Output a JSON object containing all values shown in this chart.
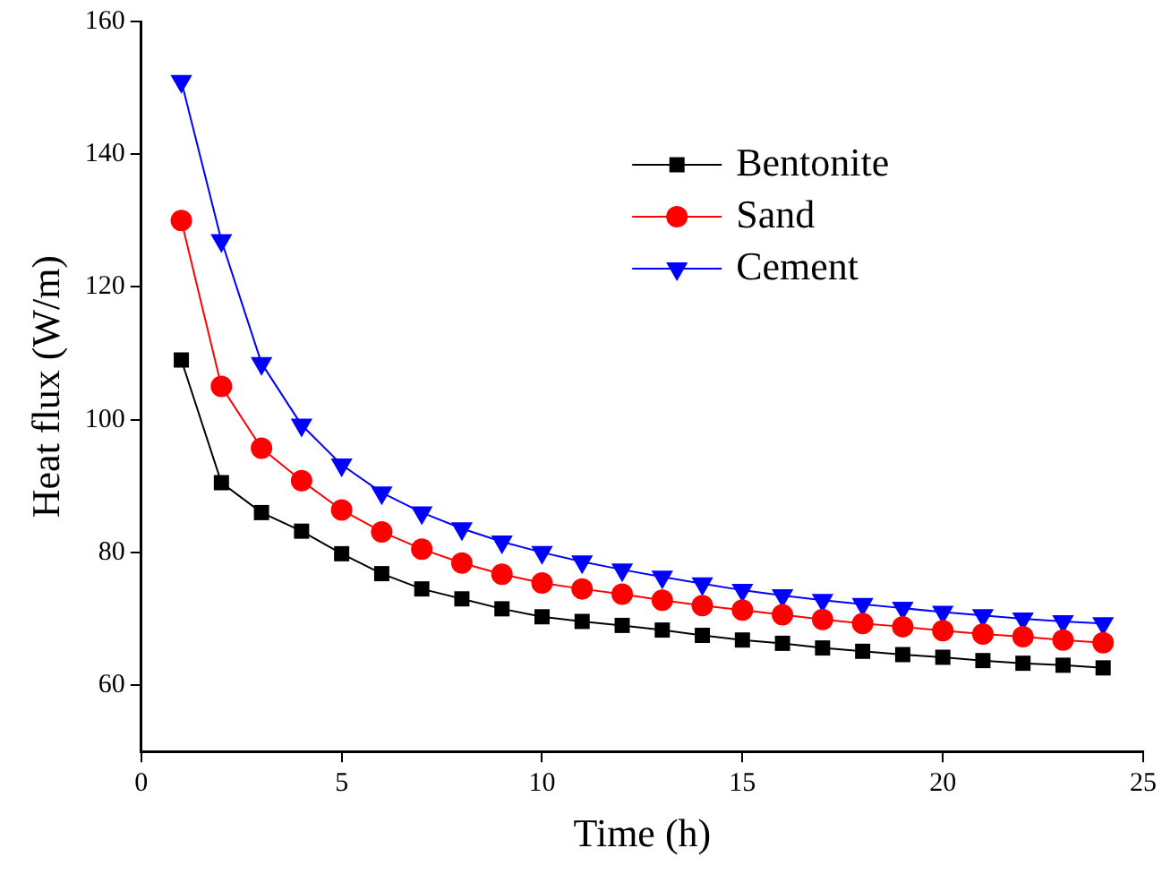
{
  "chart_data": {
    "type": "line",
    "xlabel": "Time (h)",
    "ylabel": "Heat flux (W/m)",
    "x": [
      1,
      2,
      3,
      4,
      5,
      6,
      7,
      8,
      9,
      10,
      11,
      12,
      13,
      14,
      15,
      16,
      17,
      18,
      19,
      20,
      21,
      22,
      23,
      24
    ],
    "xlim": [
      0,
      25
    ],
    "xticks": [
      0,
      5,
      10,
      15,
      20,
      25
    ],
    "ylim": [
      50,
      160
    ],
    "yticks": [
      60,
      80,
      100,
      120,
      140,
      160
    ],
    "legend": "top right",
    "grid": false,
    "series": [
      {
        "name": "Bentonite",
        "color": "#000000",
        "marker": "square",
        "values": [
          109,
          90.5,
          86,
          83.2,
          79.8,
          76.8,
          74.5,
          73,
          71.5,
          70.3,
          69.6,
          69,
          68.3,
          67.5,
          66.8,
          66.3,
          65.6,
          65.1,
          64.6,
          64.2,
          63.7,
          63.3,
          63,
          62.6
        ]
      },
      {
        "name": "Sand",
        "color": "#ff0000",
        "marker": "circle",
        "values": [
          130,
          105,
          95.7,
          90.8,
          86.4,
          83.1,
          80.5,
          78.4,
          76.7,
          75.4,
          74.5,
          73.7,
          72.8,
          72,
          71.3,
          70.6,
          69.9,
          69.3,
          68.8,
          68.2,
          67.7,
          67.3,
          66.8,
          66.4
        ]
      },
      {
        "name": "Cement",
        "color": "#0000ff",
        "marker": "triangle",
        "values": [
          151,
          127,
          108.5,
          99.2,
          93.2,
          89,
          86,
          83.6,
          81.6,
          80,
          78.6,
          77.4,
          76.3,
          75.3,
          74.3,
          73.5,
          72.8,
          72.2,
          71.6,
          71,
          70.5,
          70,
          69.6,
          69.3
        ]
      }
    ]
  }
}
